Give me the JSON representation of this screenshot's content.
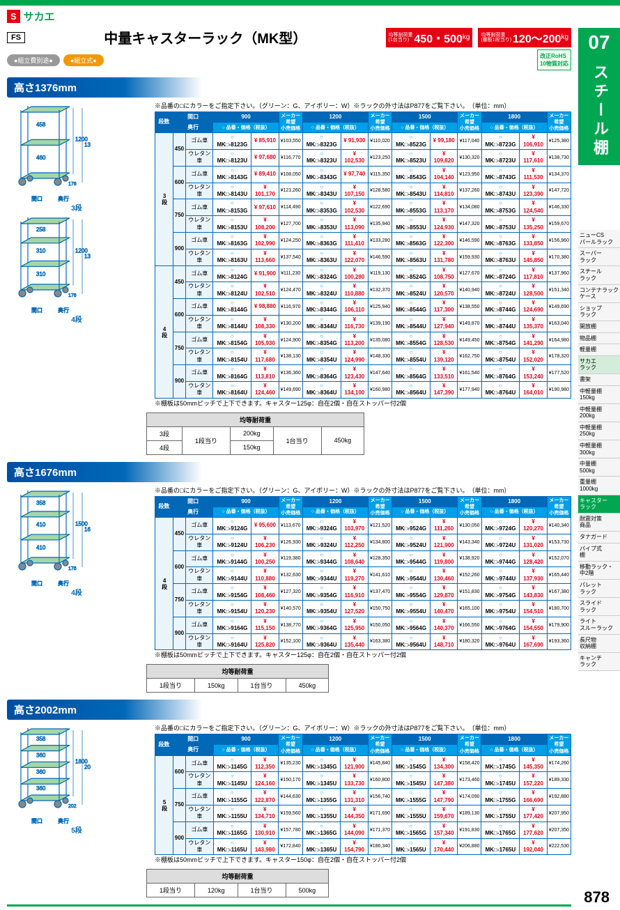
{
  "logo": {
    "s": "S",
    "txt": "サカエ"
  },
  "page_number": "878",
  "header": {
    "fs": "FS",
    "title": "中量キャスターラック（MK型）",
    "load1": {
      "lbl": "均等耐荷重\n(1台当り)",
      "v": "450・500",
      "u": "kg"
    },
    "load2": {
      "lbl": "均等耐荷重\n(棚板1段当り)",
      "v": "120〜200",
      "u": "kg"
    }
  },
  "badges": {
    "gray": "●組立費別途●",
    "orange": "●組立式●",
    "rohs": "改正RoHS\n10物質対応"
  },
  "tab": {
    "num": "07",
    "title": "スチール棚"
  },
  "sidenav": [
    "ニューCS\nパールラック",
    "スーパー\nラック",
    "スチール\nラック",
    "コンテナラック\nケース",
    "ショップ\nラック",
    "開放棚",
    "物品棚",
    "軽量棚",
    "サカエ\nラック",
    "書架",
    "中軽量棚\n150kg",
    "中軽量棚\n200kg",
    "中軽量棚\n250kg",
    "中軽量棚\n300kg",
    "中量棚\n500kg",
    "重量棚\n1000kg",
    "キャスター\nラック",
    "耐震対策\n商品",
    "タナガード",
    "パイプ式\n棚",
    "移動ラック・\n中2階",
    "パレット\nラック",
    "スライド\nラック",
    "ライト\nスルーラック",
    "長尺物\n収納棚",
    "キャンチ\nラック"
  ],
  "sidenav_active": 16,
  "sidenav_sakae": 8,
  "note1": "※品番の□にカラーをご指定下さい。（グリーン：G、アイボリー：W）※ラックの外寸法はP877をご覧下さい。　（単位：mm）",
  "footnote": "※棚板は50mmピッチで上下できます。キャスター125φ：自在2個・自在ストッパー付2個",
  "footnote5": "※棚板は50mmピッチで上下できます。キャスター150φ：自在2個・自在ストッパー付2個",
  "col_hdrs": {
    "tier": "段数",
    "width": "間口",
    "depth": "奥行",
    "model": "○ 品番・価格（税抜）",
    "msrp": "メーカー\n希望\n小売価格"
  },
  "widths": [
    "900",
    "1200",
    "1500",
    "1800"
  ],
  "wheels": {
    "g": "ゴム車",
    "u": "ウレタン車"
  },
  "sections": [
    {
      "hdr": "高さ1376mm",
      "diagrams": [
        {
          "label": "3段",
          "h": "1376",
          "ih": "1200",
          "spans": [
            "458",
            "460"
          ],
          "w": "間口",
          "d": "奥行",
          "foot": "176"
        },
        {
          "label": "4段",
          "h": "1376",
          "ih": "1200",
          "spans": [
            "258",
            "310",
            "310"
          ],
          "w": "間口",
          "d": "奥行",
          "foot": "176"
        }
      ],
      "tiers": [
        {
          "tier": "3段",
          "depths": [
            "450",
            "600",
            "750",
            "900"
          ]
        },
        {
          "tier": "4段",
          "depths": [
            "450",
            "600",
            "750",
            "900"
          ]
        }
      ],
      "data": {
        "3": {
          "450": {
            "g": [
              [
                "MK□-8123G",
                "85,910",
                "103,550"
              ],
              [
                "MK□-8323G",
                "91,930",
                "110,020"
              ],
              [
                "MK□-8523G",
                "99,180",
                "117,040"
              ],
              [
                "MK□-8723G",
                "106,910",
                "125,380"
              ]
            ],
            "u": [
              [
                "MK□-8123U",
                "97,680",
                "116,770"
              ],
              [
                "MK□-8323U",
                "102,530",
                "123,250"
              ],
              [
                "MK□-8523U",
                "109,820",
                "130,320"
              ],
              [
                "MK□-8723U",
                "117,610",
                "138,730"
              ]
            ]
          },
          "600": {
            "g": [
              [
                "MK□-8143G",
                "89,410",
                "108,050"
              ],
              [
                "MK□-8343G",
                "97,740",
                "115,350"
              ],
              [
                "MK□-8543G",
                "104,140",
                "123,950"
              ],
              [
                "MK□-8743G",
                "111,530",
                "134,370"
              ]
            ],
            "u": [
              [
                "MK□-8143U",
                "101,170",
                "121,260"
              ],
              [
                "MK□-8343U",
                "107,150",
                "128,580"
              ],
              [
                "MK□-8543U",
                "114,810",
                "137,260"
              ],
              [
                "MK□-8743U",
                "123,390",
                "147,720"
              ]
            ]
          },
          "750": {
            "g": [
              [
                "MK□-8153G",
                "97,610",
                "114,490"
              ],
              [
                "MK□-8353G",
                "102,530",
                "122,690"
              ],
              [
                "MK□-8553G",
                "113,170",
                "134,080"
              ],
              [
                "MK□-8753G",
                "124,540",
                "146,330"
              ]
            ],
            "u": [
              [
                "MK□-8153U",
                "108,200",
                "127,700"
              ],
              [
                "MK□-8353U",
                "113,090",
                "135,940"
              ],
              [
                "MK□-8553U",
                "124,930",
                "147,320"
              ],
              [
                "MK□-8753U",
                "135,250",
                "159,670"
              ]
            ]
          },
          "900": {
            "g": [
              [
                "MK□-8163G",
                "102,990",
                "124,250"
              ],
              [
                "MK□-8363G",
                "111,410",
                "133,280"
              ],
              [
                "MK□-8563G",
                "122,300",
                "146,590"
              ],
              [
                "MK□-8763G",
                "133,850",
                "156,960"
              ]
            ],
            "u": [
              [
                "MK□-8163U",
                "113,660",
                "137,540"
              ],
              [
                "MK□-8363U",
                "122,070",
                "146,590"
              ],
              [
                "MK□-8563U",
                "131,780",
                "159,930"
              ],
              [
                "MK□-8763U",
                "145,850",
                "170,380"
              ]
            ]
          }
        },
        "4": {
          "450": {
            "g": [
              [
                "MK□-8124G",
                "91,900",
                "111,230"
              ],
              [
                "MK□-8324G",
                "100,280",
                "119,130"
              ],
              [
                "MK□-8524G",
                "108,750",
                "127,670"
              ],
              [
                "MK□-8724G",
                "117,810",
                "137,960"
              ]
            ],
            "u": [
              [
                "MK□-8124U",
                "102,510",
                "124,470"
              ],
              [
                "MK□-8324U",
                "110,880",
                "132,370"
              ],
              [
                "MK□-8524U",
                "120,570",
                "140,940"
              ],
              [
                "MK□-8724U",
                "128,500",
                "151,340"
              ]
            ]
          },
          "600": {
            "g": [
              [
                "MK□-8144G",
                "98,880",
                "116,970"
              ],
              [
                "MK□-8344G",
                "106,110",
                "125,940"
              ],
              [
                "MK□-8544G",
                "117,300",
                "138,550"
              ],
              [
                "MK□-8744G",
                "124,690",
                "149,690"
              ]
            ],
            "u": [
              [
                "MK□-8144U",
                "108,330",
                "130,200"
              ],
              [
                "MK□-8344U",
                "116,730",
                "139,190"
              ],
              [
                "MK□-8544U",
                "127,940",
                "149,870"
              ],
              [
                "MK□-8744U",
                "135,370",
                "163,040"
              ]
            ]
          },
          "750": {
            "g": [
              [
                "MK□-8154G",
                "105,930",
                "124,900"
              ],
              [
                "MK□-8354G",
                "113,200",
                "135,080"
              ],
              [
                "MK□-8554G",
                "128,530",
                "149,450"
              ],
              [
                "MK□-8754G",
                "141,290",
                "164,980"
              ]
            ],
            "u": [
              [
                "MK□-8154U",
                "117,680",
                "138,130"
              ],
              [
                "MK□-8354U",
                "124,990",
                "148,330"
              ],
              [
                "MK□-8554U",
                "139,120",
                "162,750"
              ],
              [
                "MK□-8754U",
                "152,020",
                "178,320"
              ]
            ]
          },
          "900": {
            "g": [
              [
                "MK□-8164G",
                "113,810",
                "136,360"
              ],
              [
                "MK□-8364G",
                "123,430",
                "147,640"
              ],
              [
                "MK□-8564G",
                "133,510",
                "161,540"
              ],
              [
                "MK□-8764G",
                "153,240",
                "177,520"
              ]
            ],
            "u": [
              [
                "MK□-8164U",
                "124,460",
                "149,690"
              ],
              [
                "MK□-8364U",
                "134,100",
                "160,980"
              ],
              [
                "MK□-8564U",
                "147,390",
                "177,940"
              ],
              [
                "MK□-8764U",
                "164,010",
                "190,980"
              ]
            ]
          }
        }
      },
      "loadtable": {
        "hdr": "均等耐荷重",
        "rows": [
          [
            "3段",
            "1段当り",
            "200kg",
            "1台当り",
            "450kg"
          ],
          [
            "4段",
            "",
            "150kg",
            "",
            ""
          ]
        ]
      }
    },
    {
      "hdr": "高さ1676mm",
      "diagrams": [
        {
          "label": "4段",
          "h": "1676",
          "ih": "1500",
          "spans": [
            "358",
            "410",
            "410"
          ],
          "w": "間口",
          "d": "奥行",
          "foot": "176"
        }
      ],
      "tiers": [
        {
          "tier": "4段",
          "depths": [
            "450",
            "600",
            "750",
            "900"
          ]
        }
      ],
      "data": {
        "4": {
          "450": {
            "g": [
              [
                "MK□-9124G",
                "95,600",
                "113,670"
              ],
              [
                "MK□-9324G",
                "103,970",
                "121,520"
              ],
              [
                "MK□-9524G",
                "111,260",
                "130,050"
              ],
              [
                "MK□-9724G",
                "120,270",
                "140,340"
              ]
            ],
            "u": [
              [
                "MK□-9124U",
                "106,230",
                "126,930"
              ],
              [
                "MK□-9324U",
                "112,250",
                "134,800"
              ],
              [
                "MK□-9524U",
                "121,900",
                "143,340"
              ],
              [
                "MK□-9724U",
                "131,020",
                "153,730"
              ]
            ]
          },
          "600": {
            "g": [
              [
                "MK□-9144G",
                "100,250",
                "119,380"
              ],
              [
                "MK□-9344G",
                "108,640",
                "128,350"
              ],
              [
                "MK□-9544G",
                "119,800",
                "138,920"
              ],
              [
                "MK□-9744G",
                "128,420",
                "152,070"
              ]
            ],
            "u": [
              [
                "MK□-9144U",
                "110,880",
                "132,630"
              ],
              [
                "MK□-9344U",
                "119,270",
                "141,610"
              ],
              [
                "MK□-9544U",
                "130,460",
                "152,260"
              ],
              [
                "MK□-9744U",
                "137,930",
                "165,440"
              ]
            ]
          },
          "750": {
            "g": [
              [
                "MK□-9154G",
                "108,460",
                "127,320"
              ],
              [
                "MK□-9354G",
                "116,910",
                "137,470"
              ],
              [
                "MK□-9554G",
                "129,870",
                "151,830"
              ],
              [
                "MK□-9754G",
                "143,830",
                "167,380"
              ]
            ],
            "u": [
              [
                "MK□-9154U",
                "120,230",
                "140,570"
              ],
              [
                "MK□-9354U",
                "127,520",
                "150,750"
              ],
              [
                "MK□-9554U",
                "140,470",
                "165,100"
              ],
              [
                "MK□-9754U",
                "154,510",
                "180,700"
              ]
            ]
          },
          "900": {
            "g": [
              [
                "MK□-9164G",
                "115,150",
                "138,770"
              ],
              [
                "MK□-9364G",
                "125,950",
                "150,050"
              ],
              [
                "MK□-9564G",
                "140,370",
                "166,550"
              ],
              [
                "MK□-9764G",
                "154,550",
                "179,900"
              ]
            ],
            "u": [
              [
                "MK□-9164U",
                "125,820",
                "152,100"
              ],
              [
                "MK□-9364U",
                "135,440",
                "163,380"
              ],
              [
                "MK□-9564U",
                "148,710",
                "180,320"
              ],
              [
                "MK□-9764U",
                "167,690",
                "193,360"
              ]
            ]
          }
        }
      },
      "loadtable": {
        "hdr": "均等耐荷重",
        "rows": [
          [
            "1段当り",
            "150kg",
            "1台当り",
            "450kg"
          ]
        ]
      }
    },
    {
      "hdr": "高さ2002mm",
      "diagrams": [
        {
          "label": "5段",
          "h": "2002",
          "ih": "1800",
          "spans": [
            "358",
            "360",
            "360",
            "360"
          ],
          "w": "間口",
          "d": "奥行",
          "foot": "202"
        }
      ],
      "tiers": [
        {
          "tier": "5段",
          "depths": [
            "600",
            "750",
            "900"
          ]
        }
      ],
      "data": {
        "5": {
          "600": {
            "g": [
              [
                "MK□-1145G",
                "112,350",
                "135,230"
              ],
              [
                "MK□-1345G",
                "121,900",
                "145,840"
              ],
              [
                "MK□-1545G",
                "134,300",
                "158,420"
              ],
              [
                "MK□-1745G",
                "145,350",
                "174,260"
              ]
            ],
            "u": [
              [
                "MK□-1145U",
                "124,160",
                "150,170"
              ],
              [
                "MK□-1345U",
                "133,730",
                "160,800"
              ],
              [
                "MK□-1545U",
                "147,380",
                "173,460"
              ],
              [
                "MK□-1745U",
                "157,220",
                "189,330"
              ]
            ]
          },
          "750": {
            "g": [
              [
                "MK□-1155G",
                "122,870",
                "144,630"
              ],
              [
                "MK□-1355G",
                "131,310",
                "156,740"
              ],
              [
                "MK□-1555G",
                "147,790",
                "174,090"
              ],
              [
                "MK□-1755G",
                "166,690",
                "192,880"
              ]
            ],
            "u": [
              [
                "MK□-1155U",
                "134,710",
                "159,560"
              ],
              [
                "MK□-1355U",
                "144,350",
                "171,690"
              ],
              [
                "MK□-1555U",
                "159,670",
                "189,130"
              ],
              [
                "MK□-1755U",
                "177,420",
                "207,950"
              ]
            ]
          },
          "900": {
            "g": [
              [
                "MK□-1165G",
                "130,910",
                "157,780"
              ],
              [
                "MK□-1365G",
                "144,090",
                "171,370"
              ],
              [
                "MK□-1565G",
                "157,340",
                "191,830"
              ],
              [
                "MK□-1765G",
                "177,620",
                "207,350"
              ]
            ],
            "u": [
              [
                "MK□-1165U",
                "143,980",
                "172,840"
              ],
              [
                "MK□-1365U",
                "154,790",
                "186,340"
              ],
              [
                "MK□-1565U",
                "170,440",
                "206,880"
              ],
              [
                "MK□-1765U",
                "192,040",
                "222,530"
              ]
            ]
          }
        }
      },
      "loadtable": {
        "hdr": "均等耐荷重",
        "rows": [
          [
            "1段当り",
            "120kg",
            "1台当り",
            "500kg"
          ]
        ]
      }
    }
  ]
}
